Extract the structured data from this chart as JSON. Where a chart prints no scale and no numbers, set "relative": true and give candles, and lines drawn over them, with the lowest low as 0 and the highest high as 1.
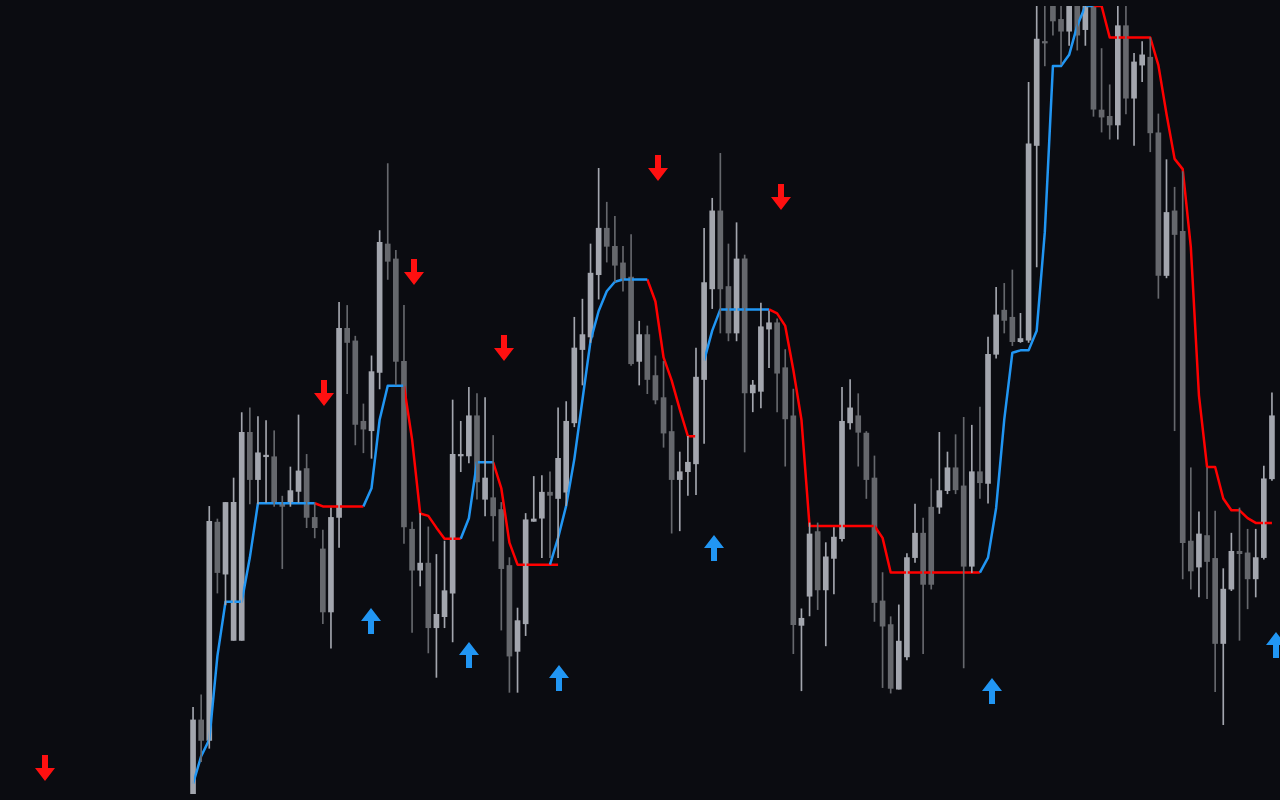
{
  "chart_data": {
    "type": "candlestick",
    "relative": true,
    "marker": "none",
    "categories": [
      null,
      null,
      null,
      null,
      null,
      null,
      null,
      null,
      null,
      null,
      null,
      null,
      null,
      null,
      null,
      null,
      null,
      null,
      null,
      null,
      null,
      null,
      null,
      null,
      null,
      null,
      null,
      null,
      null,
      null,
      null,
      null,
      null,
      null,
      null,
      null,
      null,
      null,
      null,
      null,
      null,
      null,
      null,
      null,
      null,
      null,
      null,
      null,
      null,
      null,
      null,
      null,
      null,
      null,
      null,
      null,
      null,
      null,
      null,
      null,
      null,
      null,
      null,
      null,
      null,
      null,
      null,
      null,
      null,
      null,
      null,
      null,
      null,
      null,
      null,
      null,
      null,
      null,
      null,
      null,
      null,
      null,
      null,
      null,
      null,
      null,
      null,
      null,
      null,
      null,
      null,
      null,
      null,
      null,
      null,
      null,
      null,
      null,
      null,
      null,
      null,
      null,
      null,
      null,
      null,
      null,
      null,
      null,
      null,
      null,
      null,
      null,
      null,
      null,
      null,
      null,
      null,
      null,
      null,
      null,
      null,
      null,
      null,
      null,
      null,
      null,
      null,
      null,
      null,
      null,
      null,
      null,
      null,
      null
    ],
    "ohlc": [
      [
        0,
        0.11,
        0,
        0.094
      ],
      [
        0.094,
        0.126,
        0.041,
        0.068
      ],
      [
        0.068,
        0.365,
        0.058,
        0.346
      ],
      [
        0.345,
        0.349,
        0.255,
        0.281
      ],
      [
        0.279,
        0.37,
        0.24,
        0.37
      ],
      [
        0.195,
        0.401,
        0.195,
        0.37
      ],
      [
        0.195,
        0.484,
        0.195,
        0.459
      ],
      [
        0.459,
        0.49,
        0.368,
        0.399
      ],
      [
        0.399,
        0.479,
        0.368,
        0.433
      ],
      [
        0.428,
        0.474,
        0.37,
        0.43
      ],
      [
        0.428,
        0.461,
        0.365,
        0.37
      ],
      [
        0.37,
        0.378,
        0.286,
        0.365
      ],
      [
        0.37,
        0.415,
        0.365,
        0.385
      ],
      [
        0.384,
        0.481,
        0.37,
        0.41
      ],
      [
        0.413,
        0.431,
        0.338,
        0.351
      ],
      [
        0.351,
        0.369,
        0.325,
        0.338
      ],
      [
        0.311,
        0.335,
        0.216,
        0.231
      ],
      [
        0.231,
        0.363,
        0.185,
        0.351
      ],
      [
        0.351,
        0.624,
        0.313,
        0.591
      ],
      [
        0.591,
        0.62,
        0.508,
        0.573
      ],
      [
        0.575,
        0.581,
        0.443,
        0.469
      ],
      [
        0.473,
        0.495,
        0.433,
        0.463
      ],
      [
        0.461,
        0.556,
        0.426,
        0.536
      ],
      [
        0.535,
        0.715,
        0.514,
        0.7
      ],
      [
        0.698,
        0.8,
        0.653,
        0.676
      ],
      [
        0.679,
        0.69,
        0.519,
        0.549
      ],
      [
        0.549,
        0.62,
        0.318,
        0.339
      ],
      [
        0.336,
        0.345,
        0.205,
        0.284
      ],
      [
        0.284,
        0.356,
        0.264,
        0.293
      ],
      [
        0.293,
        0.339,
        0.179,
        0.211
      ],
      [
        0.211,
        0.304,
        0.148,
        0.228
      ],
      [
        0.225,
        0.321,
        0.211,
        0.258
      ],
      [
        0.255,
        0.5,
        0.193,
        0.431
      ],
      [
        0.429,
        0.473,
        0.409,
        0.431
      ],
      [
        0.429,
        0.516,
        0.42,
        0.48
      ],
      [
        0.48,
        0.508,
        0.374,
        0.396
      ],
      [
        0.374,
        0.503,
        0.353,
        0.401
      ],
      [
        0.376,
        0.455,
        0.321,
        0.353
      ],
      [
        0.361,
        0.37,
        0.208,
        0.286
      ],
      [
        0.29,
        0.3,
        0.129,
        0.175
      ],
      [
        0.181,
        0.236,
        0.129,
        0.22
      ],
      [
        0.216,
        0.356,
        0.201,
        0.348
      ],
      [
        0.346,
        0.403,
        0.346,
        0.349
      ],
      [
        0.35,
        0.404,
        0.3,
        0.383
      ],
      [
        0.383,
        0.409,
        0.3,
        0.379
      ],
      [
        0.375,
        0.49,
        0.3,
        0.426
      ],
      [
        0.383,
        0.498,
        0.366,
        0.473
      ],
      [
        0.471,
        0.605,
        0.466,
        0.566
      ],
      [
        0.564,
        0.628,
        0.519,
        0.583
      ],
      [
        0.58,
        0.698,
        0.573,
        0.661
      ],
      [
        0.659,
        0.794,
        0.628,
        0.718
      ],
      [
        0.718,
        0.751,
        0.675,
        0.695
      ],
      [
        0.695,
        0.733,
        0.65,
        0.671
      ],
      [
        0.674,
        0.695,
        0.638,
        0.654
      ],
      [
        0.656,
        0.71,
        0.544,
        0.546
      ],
      [
        0.549,
        0.6,
        0.519,
        0.583
      ],
      [
        0.583,
        0.594,
        0.508,
        0.526
      ],
      [
        0.531,
        0.556,
        0.495,
        0.5
      ],
      [
        0.503,
        0.549,
        0.44,
        0.458
      ],
      [
        0.46,
        0.493,
        0.331,
        0.399
      ],
      [
        0.399,
        0.434,
        0.334,
        0.409
      ],
      [
        0.409,
        0.454,
        0.379,
        0.421
      ],
      [
        0.419,
        0.566,
        0.38,
        0.529
      ],
      [
        0.526,
        0.718,
        0.445,
        0.649
      ],
      [
        0.641,
        0.756,
        0.616,
        0.74
      ],
      [
        0.74,
        0.813,
        0.585,
        0.641
      ],
      [
        0.644,
        0.698,
        0.575,
        0.585
      ],
      [
        0.585,
        0.725,
        0.575,
        0.679
      ],
      [
        0.679,
        0.684,
        0.434,
        0.509
      ],
      [
        0.509,
        0.525,
        0.485,
        0.519
      ],
      [
        0.511,
        0.623,
        0.49,
        0.593
      ],
      [
        0.59,
        0.613,
        0.541,
        0.598
      ],
      [
        0.598,
        0.603,
        0.485,
        0.534
      ],
      [
        0.541,
        0.564,
        0.416,
        0.476
      ],
      [
        0.48,
        0.514,
        0.178,
        0.215
      ],
      [
        0.214,
        0.235,
        0.131,
        0.223
      ],
      [
        0.251,
        0.344,
        0.226,
        0.33
      ],
      [
        0.333,
        0.344,
        0.234,
        0.259
      ],
      [
        0.259,
        0.319,
        0.188,
        0.301
      ],
      [
        0.299,
        0.338,
        0.254,
        0.326
      ],
      [
        0.324,
        0.516,
        0.321,
        0.473
      ],
      [
        0.471,
        0.526,
        0.463,
        0.49
      ],
      [
        0.48,
        0.508,
        0.416,
        0.459
      ],
      [
        0.458,
        0.46,
        0.375,
        0.399
      ],
      [
        0.401,
        0.429,
        0.219,
        0.243
      ],
      [
        0.245,
        0.281,
        0.135,
        0.213
      ],
      [
        0.215,
        0.225,
        0.128,
        0.134
      ],
      [
        0.133,
        0.24,
        0.133,
        0.194
      ],
      [
        0.174,
        0.305,
        0.17,
        0.3
      ],
      [
        0.3,
        0.368,
        0.294,
        0.331
      ],
      [
        0.331,
        0.35,
        0.178,
        0.266
      ],
      [
        0.364,
        0.4,
        0.26,
        0.266
      ],
      [
        0.364,
        0.459,
        0.356,
        0.385
      ],
      [
        0.385,
        0.434,
        0.381,
        0.414
      ],
      [
        0.414,
        0.456,
        0.381,
        0.386
      ],
      [
        0.391,
        0.478,
        0.16,
        0.289
      ],
      [
        0.289,
        0.468,
        0.281,
        0.409
      ],
      [
        0.409,
        0.491,
        0.375,
        0.395
      ],
      [
        0.394,
        0.58,
        0.369,
        0.558
      ],
      [
        0.558,
        0.643,
        0.553,
        0.608
      ],
      [
        0.614,
        0.648,
        0.585,
        0.601
      ],
      [
        0.605,
        0.665,
        0.569,
        0.574
      ],
      [
        0.574,
        0.61,
        0.573,
        0.578
      ],
      [
        0.576,
        0.903,
        0.573,
        0.825
      ],
      [
        0.823,
        1,
        0.669,
        0.958
      ],
      [
        0.955,
        1,
        0.924,
        0.953
      ],
      [
        1,
        1,
        0.963,
        0.981
      ],
      [
        0.983,
        1,
        0.926,
        0.968
      ],
      [
        0.968,
        1,
        0.95,
        1
      ],
      [
        1,
        1,
        0.944,
        0.963
      ],
      [
        0.97,
        1,
        0.95,
        1
      ],
      [
        1,
        1,
        0.86,
        0.869
      ],
      [
        0.868,
        0.946,
        0.84,
        0.859
      ],
      [
        0.86,
        0.9,
        0.831,
        0.849
      ],
      [
        0.849,
        1,
        0.831,
        0.975
      ],
      [
        0.975,
        1,
        0.863,
        0.883
      ],
      [
        0.883,
        0.94,
        0.823,
        0.929
      ],
      [
        0.925,
        0.955,
        0.904,
        0.938
      ],
      [
        0.935,
        0.96,
        0.815,
        0.839
      ],
      [
        0.839,
        0.863,
        0.629,
        0.658
      ],
      [
        0.658,
        0.805,
        0.655,
        0.738
      ],
      [
        0.74,
        0.77,
        0.461,
        0.71
      ],
      [
        0.714,
        0.79,
        0.273,
        0.319
      ],
      [
        0.321,
        0.414,
        0.26,
        0.283
      ],
      [
        0.288,
        0.358,
        0.25,
        0.33
      ],
      [
        0.328,
        0.414,
        0.248,
        0.295
      ],
      [
        0.299,
        0.359,
        0.13,
        0.191
      ],
      [
        0.191,
        0.286,
        0.088,
        0.26
      ],
      [
        0.26,
        0.331,
        0.258,
        0.308
      ],
      [
        0.308,
        0.363,
        0.195,
        0.305
      ],
      [
        0.306,
        0.336,
        0.235,
        0.273
      ],
      [
        0.273,
        0.336,
        0.25,
        0.3
      ],
      [
        0.3,
        0.416,
        0.298,
        0.4
      ],
      [
        0.4,
        0.509,
        0.398,
        0.48
      ]
    ],
    "colors": [
      "#a3a6ae",
      "#66686d",
      "#a3a6ae",
      "#66686d",
      "#a3a6ae",
      "#a3a6ae",
      "#a3a6ae",
      "#66686d",
      "#a3a6ae",
      "#a3a6ae",
      "#66686d",
      "#66686d",
      "#a3a6ae",
      "#a3a6ae",
      "#66686d",
      "#66686d",
      "#66686d",
      "#a3a6ae",
      "#a3a6ae",
      "#66686d",
      "#66686d",
      "#66686d",
      "#a3a6ae",
      "#a3a6ae",
      "#66686d",
      "#66686d",
      "#66686d",
      "#66686d",
      "#a3a6ae",
      "#66686d",
      "#a3a6ae",
      "#a3a6ae",
      "#a3a6ae",
      "#a3a6ae",
      "#a3a6ae",
      "#66686d",
      "#a3a6ae",
      "#66686d",
      "#66686d",
      "#66686d",
      "#a3a6ae",
      "#a3a6ae",
      "#a3a6ae",
      "#a3a6ae",
      "#66686d",
      "#a3a6ae",
      "#a3a6ae",
      "#a3a6ae",
      "#a3a6ae",
      "#a3a6ae",
      "#a3a6ae",
      "#66686d",
      "#66686d",
      "#66686d",
      "#66686d",
      "#a3a6ae",
      "#66686d",
      "#66686d",
      "#66686d",
      "#66686d",
      "#a3a6ae",
      "#a3a6ae",
      "#a3a6ae",
      "#a3a6ae",
      "#a3a6ae",
      "#66686d",
      "#66686d",
      "#a3a6ae",
      "#66686d",
      "#a3a6ae",
      "#a3a6ae",
      "#a3a6ae",
      "#66686d",
      "#66686d",
      "#66686d",
      "#a3a6ae",
      "#a3a6ae",
      "#66686d",
      "#a3a6ae",
      "#a3a6ae",
      "#a3a6ae",
      "#a3a6ae",
      "#66686d",
      "#66686d",
      "#66686d",
      "#66686d",
      "#66686d",
      "#a3a6ae",
      "#a3a6ae",
      "#a3a6ae",
      "#66686d",
      "#66686d",
      "#a3a6ae",
      "#a3a6ae",
      "#66686d",
      "#66686d",
      "#a3a6ae",
      "#66686d",
      "#a3a6ae",
      "#a3a6ae",
      "#66686d",
      "#66686d",
      "#a3a6ae",
      "#a3a6ae",
      "#a3a6ae",
      "#66686d",
      "#66686d",
      "#66686d",
      "#a3a6ae",
      "#66686d",
      "#a3a6ae",
      "#66686d",
      "#66686d",
      "#66686d",
      "#a3a6ae",
      "#66686d",
      "#a3a6ae",
      "#a3a6ae",
      "#66686d",
      "#66686d",
      "#a3a6ae",
      "#66686d",
      "#66686d",
      "#66686d",
      "#a3a6ae",
      "#66686d",
      "#66686d",
      "#a3a6ae",
      "#a3a6ae",
      "#66686d",
      "#66686d",
      "#a3a6ae",
      "#a3a6ae",
      "#a3a6ae"
    ],
    "series": [
      {
        "type": "line",
        "color": "#2196f3",
        "values": [
          0.013,
          0.048,
          0.069,
          0.175,
          0.244,
          0.244,
          0.244,
          0.3,
          0.369,
          0.369,
          0.369,
          0.369,
          0.369,
          0.369,
          0.369,
          0.369,
          null,
          null,
          null,
          null,
          null,
          0.365,
          0.388,
          0.475,
          0.518,
          0.518,
          0.518,
          null,
          null,
          null,
          null,
          null,
          null,
          0.324,
          0.35,
          0.421,
          0.421,
          0.421,
          null,
          null,
          null,
          null,
          null,
          null,
          0.291,
          0.325,
          0.366,
          0.425,
          0.5,
          0.575,
          0.613,
          0.638,
          0.65,
          0.653,
          0.653,
          0.653,
          0.653,
          null,
          null,
          null,
          null,
          null,
          null,
          0.55,
          0.588,
          0.615,
          0.615,
          0.615,
          0.615,
          0.615,
          0.615,
          0.615,
          null,
          null,
          null,
          null,
          null,
          null,
          null,
          null,
          null,
          null,
          null,
          null,
          null,
          null,
          null,
          null,
          null,
          null,
          null,
          null,
          null,
          null,
          null,
          null,
          null,
          0.281,
          0.3,
          0.363,
          0.475,
          0.56,
          0.563,
          0.563,
          0.588,
          0.713,
          0.924,
          0.924,
          0.938,
          0.975,
          1,
          1,
          null,
          null,
          null,
          null,
          null,
          null,
          null,
          null,
          null,
          null,
          null,
          null,
          null,
          null,
          null,
          null,
          null,
          null,
          null,
          null,
          null,
          null
        ]
      },
      {
        "type": "line",
        "color": "#ff0000",
        "values": [
          null,
          null,
          null,
          null,
          null,
          null,
          null,
          null,
          null,
          null,
          null,
          null,
          null,
          null,
          null,
          0.369,
          0.365,
          0.365,
          0.365,
          0.365,
          0.365,
          0.365,
          null,
          null,
          null,
          null,
          0.518,
          0.45,
          0.356,
          0.353,
          0.338,
          0.324,
          0.324,
          0.324,
          null,
          null,
          null,
          0.421,
          0.388,
          0.319,
          0.291,
          0.291,
          0.291,
          0.291,
          0.291,
          0.291,
          null,
          null,
          null,
          null,
          null,
          null,
          null,
          null,
          null,
          null,
          0.653,
          0.625,
          0.554,
          0.525,
          0.488,
          0.454,
          0.454,
          null,
          null,
          null,
          null,
          null,
          null,
          null,
          null,
          0.615,
          0.61,
          0.594,
          0.538,
          0.475,
          0.34,
          0.34,
          0.34,
          0.34,
          0.34,
          0.34,
          0.34,
          0.34,
          0.34,
          0.325,
          0.281,
          0.281,
          0.281,
          0.281,
          0.281,
          0.281,
          0.281,
          0.281,
          0.281,
          0.281,
          0.281,
          0.281,
          null,
          null,
          null,
          null,
          null,
          null,
          null,
          null,
          null,
          null,
          null,
          null,
          null,
          1,
          1,
          0.96,
          0.96,
          0.96,
          0.96,
          0.96,
          0.96,
          0.925,
          0.863,
          0.806,
          0.793,
          0.694,
          0.506,
          0.415,
          0.415,
          0.375,
          0.36,
          0.36,
          0.35,
          0.344,
          0.344,
          0.344
        ]
      }
    ]
  }
}
